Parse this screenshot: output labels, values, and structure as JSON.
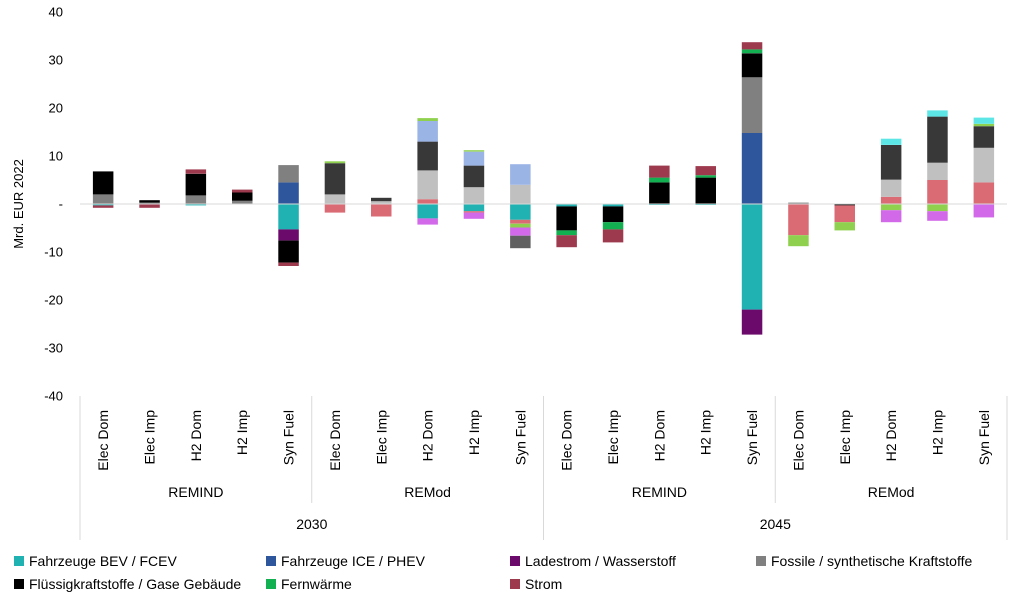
{
  "chart_data": {
    "type": "bar",
    "stacked": true,
    "ylabel": "Mrd. EUR 2022",
    "ylim": [
      -40,
      40
    ],
    "yticks": [
      -40,
      -30,
      -20,
      -10,
      0,
      10,
      20,
      30,
      40
    ],
    "ytick_labels": [
      "-40",
      "-30",
      "-20",
      "-10",
      "-",
      "10",
      "20",
      "30",
      "40"
    ],
    "grid": false,
    "legend_position": "bottom",
    "categories": [
      "Elec Dom",
      "Elec Imp",
      "H2 Dom",
      "H2 Imp",
      "Syn Fuel",
      "Elec Dom",
      "Elec Imp",
      "H2 Dom",
      "H2 Imp",
      "Syn Fuel",
      "Elec Dom",
      "Elec Imp",
      "H2 Dom",
      "H2 Imp",
      "Syn Fuel",
      "Elec Dom",
      "Elec Imp",
      "H2 Dom",
      "H2 Imp",
      "Syn Fuel"
    ],
    "groups": [
      {
        "label": "REMIND",
        "start": 0,
        "end": 4
      },
      {
        "label": "REMod",
        "start": 5,
        "end": 9
      },
      {
        "label": "REMIND",
        "start": 10,
        "end": 14
      },
      {
        "label": "REMod",
        "start": 15,
        "end": 19
      }
    ],
    "super_groups": [
      {
        "label": "2030",
        "start": 0,
        "end": 9
      },
      {
        "label": "2045",
        "start": 10,
        "end": 19
      }
    ],
    "series": [
      {
        "name": "Fahrzeuge BEV / FCEV",
        "color": "#20B2B2",
        "values": [
          -0.3,
          0,
          -0.3,
          0,
          -5.3,
          0,
          0,
          -3,
          -1.5,
          -3.3,
          -0.5,
          -0.5,
          -0.2,
          -0.2,
          -22,
          0,
          0,
          0,
          0,
          0
        ]
      },
      {
        "name": "Fahrzeuge ICE / PHEV",
        "color": "#2E569C",
        "values": [
          0,
          0,
          0,
          0,
          4.5,
          0,
          0,
          0,
          0,
          0,
          0,
          0,
          0,
          0,
          14.8,
          0,
          0,
          0,
          0,
          0
        ]
      },
      {
        "name": "Ladestrom / Wasserstoff",
        "color": "#6B0A6B",
        "values": [
          0,
          0,
          0,
          0,
          -2.3,
          0,
          0,
          0,
          0,
          0,
          0,
          0,
          0,
          0,
          -5.2,
          0,
          0,
          0,
          0,
          0
        ]
      },
      {
        "name": "Fossile / synthetische Kraftstoffe",
        "color": "#808080",
        "values": [
          2.0,
          0.3,
          1.8,
          0.7,
          3.6,
          0,
          0,
          0,
          0,
          0,
          0,
          0,
          0,
          0,
          11.6,
          0.3,
          0,
          0,
          0,
          0
        ]
      },
      {
        "name": "Flüssigkraftstoffe / Gase Gebäude",
        "color": "#000000",
        "values": [
          4.8,
          0.5,
          4.5,
          1.7,
          -4.6,
          0,
          0,
          0,
          0,
          0,
          -5.0,
          -3.3,
          4.5,
          5.5,
          5.0,
          0,
          -0.3,
          0,
          0,
          0
        ]
      },
      {
        "name": "Fernwärme",
        "color": "#12B050",
        "values": [
          0,
          0,
          0,
          0,
          0,
          0,
          0,
          0,
          0,
          0,
          -1.0,
          -1.5,
          1.0,
          0.5,
          0.8,
          0,
          0,
          0,
          0,
          0
        ]
      },
      {
        "name": "Strom",
        "color": "#9E3A4E",
        "values": [
          -0.5,
          -0.8,
          0.9,
          0.6,
          -0.7,
          0,
          0,
          0,
          0,
          0,
          -2.5,
          -2.7,
          2.5,
          1.9,
          1.5,
          0,
          0,
          0,
          0,
          0
        ]
      },
      {
        "name": "",
        "color": "#DA6B74",
        "values": [
          0,
          0,
          0,
          0,
          0,
          -1.8,
          -2.6,
          1.0,
          -0.3,
          -0.8,
          0,
          0,
          0,
          0,
          0,
          -6.5,
          -3.5,
          1.5,
          5.0,
          4.5
        ]
      },
      {
        "name": "",
        "color": "#C0C0C0",
        "values": [
          0,
          0,
          0,
          0,
          0,
          2.0,
          0.6,
          6.0,
          3.5,
          4.0,
          0,
          0,
          0,
          0,
          0,
          0,
          0,
          3.6,
          3.6,
          7.2
        ]
      },
      {
        "name": "",
        "color": "#383838",
        "values": [
          0,
          0,
          0,
          0,
          0,
          6.5,
          0.7,
          6.0,
          4.5,
          0,
          0,
          0,
          0,
          0,
          0,
          0,
          0,
          7.2,
          9.6,
          4.5
        ]
      },
      {
        "name": "",
        "color": "#9BB4E6",
        "values": [
          0,
          0,
          0,
          0,
          0,
          0,
          0,
          4.3,
          2.9,
          4.3,
          0,
          0,
          0,
          0,
          0,
          0,
          0,
          0,
          0,
          0
        ]
      },
      {
        "name": "",
        "color": "#8FD14F",
        "values": [
          0,
          0,
          0,
          0,
          0,
          0.4,
          0,
          0.6,
          0.3,
          -0.8,
          0,
          0,
          0,
          0,
          0,
          -2.3,
          -1.7,
          -1.3,
          -1.5,
          0.5
        ]
      },
      {
        "name": "",
        "color": "#D269E8",
        "values": [
          0,
          0,
          0,
          0,
          0,
          0,
          0,
          -1.3,
          -1.3,
          -1.7,
          0,
          0,
          0,
          0,
          0,
          0,
          0,
          -2.5,
          -2.0,
          -2.8
        ]
      },
      {
        "name": "",
        "color": "#5CE6E6",
        "values": [
          0,
          0,
          0,
          0,
          0,
          0,
          0,
          0,
          0,
          0,
          0,
          0,
          0,
          0,
          0,
          0,
          0,
          1.3,
          1.3,
          1.3
        ]
      },
      {
        "name": "",
        "color": "#606060",
        "values": [
          0,
          0,
          0,
          0,
          0,
          0,
          0,
          0,
          0,
          -2.6,
          0,
          0,
          0,
          0,
          0,
          0,
          0,
          0,
          0,
          0
        ]
      }
    ]
  },
  "legend": [
    {
      "name": "Fahrzeuge BEV / FCEV",
      "color": "#20B2B2"
    },
    {
      "name": "Fahrzeuge ICE / PHEV",
      "color": "#2E569C"
    },
    {
      "name": "Ladestrom / Wasserstoff",
      "color": "#6B0A6B"
    },
    {
      "name": "Fossile / synthetische Kraftstoffe",
      "color": "#808080"
    },
    {
      "name": "Flüssigkraftstoffe / Gase Gebäude",
      "color": "#000000"
    },
    {
      "name": "Fernwärme",
      "color": "#12B050"
    },
    {
      "name": "Strom",
      "color": "#9E3A4E"
    }
  ]
}
